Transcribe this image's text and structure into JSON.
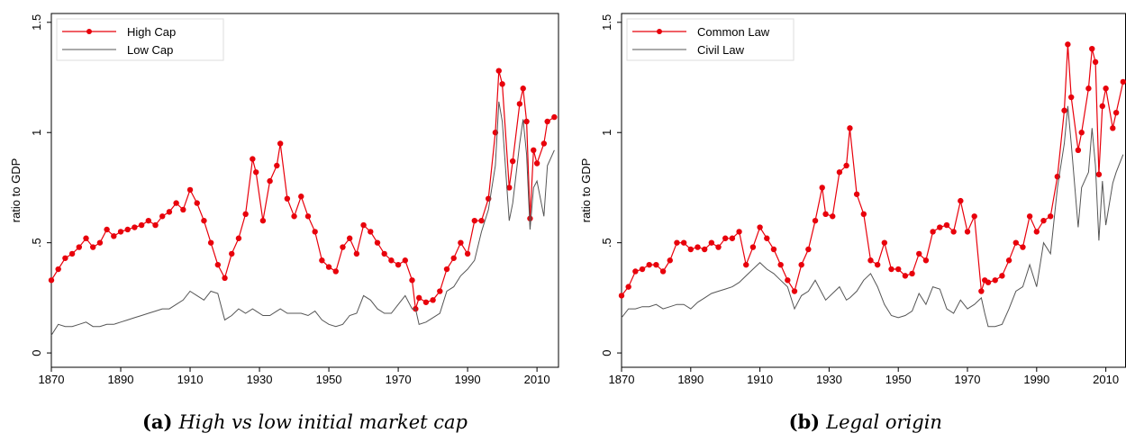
{
  "chart_data": [
    {
      "type": "line",
      "caption_label": "(a)",
      "caption": "High vs low initial market cap",
      "ylabel": "ratio to GDP",
      "legend": "upper left",
      "xlim": [
        1870,
        2016.2
      ],
      "xticks": [
        1870,
        1890,
        1910,
        1930,
        1950,
        1970,
        1990,
        2010
      ],
      "ylim": [
        -0.065,
        1.54
      ],
      "yticks": [
        0,
        {
          "value": 0.5,
          "label": ".5"
        },
        1,
        1.5
      ],
      "x": [
        1870,
        1872,
        1874,
        1876,
        1878,
        1880,
        1882,
        1884,
        1886,
        1888,
        1890,
        1892,
        1894,
        1896,
        1898,
        1900,
        1902,
        1904,
        1906,
        1908,
        1910,
        1912,
        1914,
        1916,
        1918,
        1920,
        1922,
        1924,
        1926,
        1928,
        1929,
        1931,
        1933,
        1935,
        1936,
        1938,
        1940,
        1942,
        1944,
        1946,
        1948,
        1950,
        1952,
        1954,
        1956,
        1958,
        1960,
        1962,
        1964,
        1966,
        1968,
        1970,
        1972,
        1974,
        1975,
        1976,
        1978,
        1980,
        1982,
        1984,
        1986,
        1988,
        1990,
        1992,
        1994,
        1996,
        1998,
        1999,
        2000,
        2002,
        2003,
        2005,
        2006,
        2007,
        2008,
        2009,
        2010,
        2012,
        2013,
        2015
      ],
      "series": [
        {
          "name": "High Cap",
          "color": "#e8000b",
          "markers": true,
          "values": [
            0.33,
            0.38,
            0.43,
            0.45,
            0.48,
            0.52,
            0.48,
            0.5,
            0.56,
            0.53,
            0.55,
            0.56,
            0.57,
            0.58,
            0.6,
            0.58,
            0.62,
            0.64,
            0.68,
            0.65,
            0.74,
            0.68,
            0.6,
            0.5,
            0.4,
            0.34,
            0.45,
            0.52,
            0.63,
            0.88,
            0.82,
            0.6,
            0.78,
            0.85,
            0.95,
            0.7,
            0.62,
            0.71,
            0.62,
            0.55,
            0.42,
            0.39,
            0.37,
            0.48,
            0.52,
            0.45,
            0.58,
            0.55,
            0.5,
            0.45,
            0.42,
            0.4,
            0.42,
            0.33,
            0.2,
            0.25,
            0.23,
            0.24,
            0.28,
            0.38,
            0.43,
            0.5,
            0.45,
            0.6,
            0.6,
            0.7,
            1.0,
            1.28,
            1.22,
            0.75,
            0.87,
            1.13,
            1.2,
            1.05,
            0.61,
            0.92,
            0.86,
            0.95,
            1.05,
            1.07
          ]
        },
        {
          "name": "Low Cap",
          "color": "#555555",
          "markers": false,
          "values": [
            0.08,
            0.13,
            0.12,
            0.12,
            0.13,
            0.14,
            0.12,
            0.12,
            0.13,
            0.13,
            0.14,
            0.15,
            0.16,
            0.17,
            0.18,
            0.19,
            0.2,
            0.2,
            0.22,
            0.24,
            0.28,
            0.26,
            0.24,
            0.28,
            0.27,
            0.15,
            0.17,
            0.2,
            0.18,
            0.2,
            0.19,
            0.17,
            0.17,
            0.19,
            0.2,
            0.18,
            0.18,
            0.18,
            0.17,
            0.19,
            0.15,
            0.13,
            0.12,
            0.13,
            0.17,
            0.18,
            0.26,
            0.24,
            0.2,
            0.18,
            0.18,
            0.22,
            0.26,
            0.2,
            0.2,
            0.13,
            0.14,
            0.16,
            0.18,
            0.28,
            0.3,
            0.35,
            0.38,
            0.42,
            0.55,
            0.65,
            0.85,
            1.14,
            1.05,
            0.6,
            0.68,
            0.95,
            1.06,
            0.9,
            0.56,
            0.75,
            0.78,
            0.62,
            0.85,
            0.92
          ]
        }
      ]
    },
    {
      "type": "line",
      "caption_label": "(b)",
      "caption": "Legal origin",
      "ylabel": "ratio to GDP",
      "legend": "upper left",
      "xlim": [
        1870,
        2015.7
      ],
      "xticks": [
        1870,
        1890,
        1910,
        1930,
        1950,
        1970,
        1990,
        2010
      ],
      "ylim": [
        -0.065,
        1.54
      ],
      "yticks": [
        0,
        {
          "value": 0.5,
          "label": ".5"
        },
        1,
        1.5
      ],
      "x": [
        1870,
        1872,
        1874,
        1876,
        1878,
        1880,
        1882,
        1884,
        1886,
        1888,
        1890,
        1892,
        1894,
        1896,
        1898,
        1900,
        1902,
        1904,
        1906,
        1908,
        1910,
        1912,
        1914,
        1916,
        1918,
        1920,
        1922,
        1924,
        1926,
        1928,
        1929,
        1931,
        1933,
        1935,
        1936,
        1938,
        1940,
        1942,
        1944,
        1946,
        1948,
        1950,
        1952,
        1954,
        1956,
        1958,
        1960,
        1962,
        1964,
        1966,
        1968,
        1970,
        1972,
        1974,
        1975,
        1976,
        1978,
        1980,
        1982,
        1984,
        1986,
        1988,
        1990,
        1992,
        1994,
        1996,
        1998,
        1999,
        2000,
        2002,
        2003,
        2005,
        2006,
        2007,
        2008,
        2009,
        2010,
        2012,
        2013,
        2015
      ],
      "series": [
        {
          "name": "Common Law",
          "color": "#e8000b",
          "markers": true,
          "values": [
            0.26,
            0.3,
            0.37,
            0.38,
            0.4,
            0.4,
            0.37,
            0.42,
            0.5,
            0.5,
            0.47,
            0.48,
            0.47,
            0.5,
            0.48,
            0.52,
            0.52,
            0.55,
            0.4,
            0.48,
            0.57,
            0.52,
            0.47,
            0.4,
            0.33,
            0.28,
            0.4,
            0.47,
            0.6,
            0.75,
            0.63,
            0.62,
            0.82,
            0.85,
            1.02,
            0.72,
            0.63,
            0.42,
            0.4,
            0.5,
            0.38,
            0.38,
            0.35,
            0.36,
            0.45,
            0.42,
            0.55,
            0.57,
            0.58,
            0.55,
            0.69,
            0.55,
            0.62,
            0.28,
            0.33,
            0.32,
            0.33,
            0.35,
            0.42,
            0.5,
            0.48,
            0.62,
            0.55,
            0.6,
            0.62,
            0.8,
            1.1,
            1.4,
            1.16,
            0.92,
            1.0,
            1.2,
            1.38,
            1.32,
            0.81,
            1.12,
            1.2,
            1.02,
            1.09,
            1.23
          ]
        },
        {
          "name": "Civil Law",
          "color": "#555555",
          "markers": false,
          "values": [
            0.16,
            0.2,
            0.2,
            0.21,
            0.21,
            0.22,
            0.2,
            0.21,
            0.22,
            0.22,
            0.2,
            0.23,
            0.25,
            0.27,
            0.28,
            0.29,
            0.3,
            0.32,
            0.35,
            0.38,
            0.41,
            0.38,
            0.36,
            0.33,
            0.3,
            0.2,
            0.26,
            0.28,
            0.33,
            0.27,
            0.24,
            0.27,
            0.3,
            0.24,
            0.25,
            0.28,
            0.33,
            0.36,
            0.3,
            0.22,
            0.17,
            0.16,
            0.17,
            0.19,
            0.27,
            0.22,
            0.3,
            0.29,
            0.2,
            0.18,
            0.24,
            0.2,
            0.22,
            0.25,
            0.18,
            0.12,
            0.12,
            0.13,
            0.2,
            0.28,
            0.3,
            0.4,
            0.3,
            0.5,
            0.45,
            0.75,
            0.95,
            1.12,
            0.95,
            0.57,
            0.75,
            0.82,
            1.02,
            0.85,
            0.51,
            0.78,
            0.58,
            0.77,
            0.82,
            0.9
          ]
        }
      ]
    }
  ]
}
